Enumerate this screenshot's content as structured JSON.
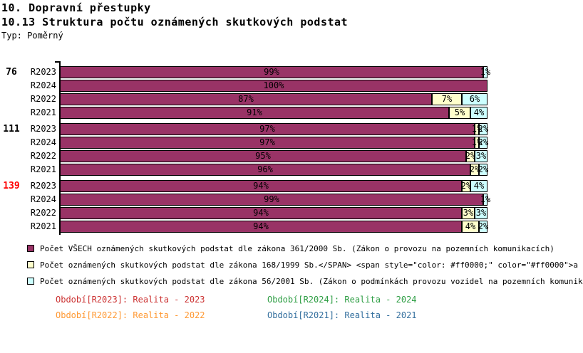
{
  "header": {
    "title": "10. Dopravní přestupky",
    "subtitle": "10.13 Struktura počtu oznámených skutkových podstat",
    "type_label": "Typ: Poměrný"
  },
  "chart_data": {
    "type": "bar",
    "orientation": "horizontal",
    "stacked": true,
    "unit": "%",
    "xlim": [
      0,
      100
    ],
    "grid": false,
    "legend_position": "bottom",
    "series": [
      {
        "name": "Počet VŠECH oznámených skutkových podstat dle zákona 361/2000 Sb. (Zákon o provozu na pozemních komunikacích)",
        "color": "#993366"
      },
      {
        "name": "Počet oznámených skutkových podstat dle zákona 168/1999 Sb.</SPAN> <span style=\"color: #ff0000;\" color=\"#ff0000\">a",
        "color": "#FFFFCC"
      },
      {
        "name": "Počet oznámených skutkových podstat dle zákona 56/2001 Sb. (Zákon o podmínkách provozu vozidel na pozemních komunik",
        "color": "#CCFFFF"
      }
    ],
    "groups": [
      {
        "label": "76",
        "label_color": "#000000",
        "rows": [
          {
            "period": "R2023",
            "values": [
              99,
              0,
              1
            ]
          },
          {
            "period": "R2024",
            "values": [
              100,
              0,
              0
            ]
          },
          {
            "period": "R2022",
            "values": [
              87,
              7,
              6
            ]
          },
          {
            "period": "R2021",
            "values": [
              91,
              5,
              4
            ]
          }
        ]
      },
      {
        "label": "111",
        "label_color": "#000000",
        "rows": [
          {
            "period": "R2023",
            "values": [
              97,
              1,
              2
            ]
          },
          {
            "period": "R2024",
            "values": [
              97,
              1,
              2
            ]
          },
          {
            "period": "R2022",
            "values": [
              95,
              2,
              3
            ]
          },
          {
            "period": "R2021",
            "values": [
              96,
              2,
              2
            ]
          }
        ]
      },
      {
        "label": "139",
        "label_color": "#FF0000",
        "rows": [
          {
            "period": "R2023",
            "values": [
              94,
              2,
              4
            ]
          },
          {
            "period": "R2024",
            "values": [
              99,
              0,
              1
            ]
          },
          {
            "period": "R2022",
            "values": [
              94,
              3,
              3
            ]
          },
          {
            "period": "R2021",
            "values": [
              94,
              4,
              2
            ]
          }
        ]
      }
    ]
  },
  "period_legend": [
    {
      "label": "Období[R2023]: Realita - 2023",
      "color": "#CC3333"
    },
    {
      "label": "Období[R2024]: Realita - 2024",
      "color": "#2E9E44"
    },
    {
      "label": "Období[R2022]: Realita - 2022",
      "color": "#FF9933"
    },
    {
      "label": "Období[R2021]: Realita - 2021",
      "color": "#336F9E"
    }
  ]
}
